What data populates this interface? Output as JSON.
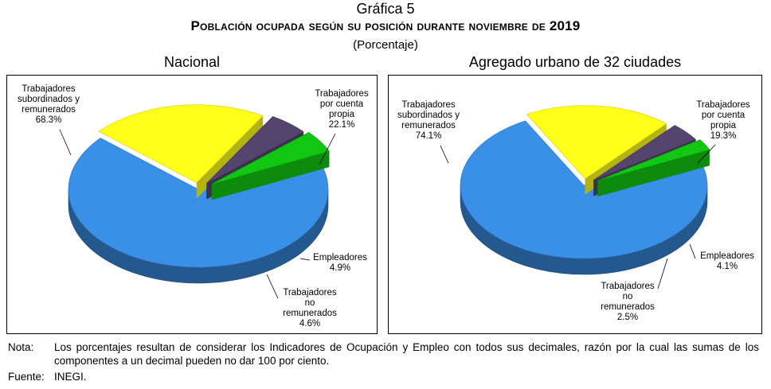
{
  "header": {
    "number": "Gráfica 5",
    "title": "Población ocupada según su posición durante noviembre de 2019",
    "subtitle": "(Porcentaje)"
  },
  "chart_data": [
    {
      "type": "pie",
      "title": "Nacional",
      "slices": [
        {
          "label_lines": [
            "Trabajadores",
            "subordinados y",
            "remunerados"
          ],
          "value": 68.3,
          "value_label": "68.3%",
          "color": "#3a8fe6"
        },
        {
          "label_lines": [
            "Trabajadores",
            "por cuenta",
            "propia"
          ],
          "value": 22.1,
          "value_label": "22.1%",
          "color": "#ffff1a"
        },
        {
          "label_lines": [
            "Empleadores"
          ],
          "value": 4.9,
          "value_label": "4.9%",
          "color": "#55446e"
        },
        {
          "label_lines": [
            "Trabajadores",
            "no",
            "remunerados"
          ],
          "value": 4.6,
          "value_label": "4.6%",
          "color": "#11c711"
        }
      ]
    },
    {
      "type": "pie",
      "title": "Agregado urbano de 32 ciudades",
      "slices": [
        {
          "label_lines": [
            "Trabajadores",
            "subordinados y",
            "remunerados"
          ],
          "value": 74.1,
          "value_label": "74.1%",
          "color": "#3a8fe6"
        },
        {
          "label_lines": [
            "Trabajadores",
            "por cuenta",
            "propia"
          ],
          "value": 19.3,
          "value_label": "19.3%",
          "color": "#ffff1a"
        },
        {
          "label_lines": [
            "Empleadores"
          ],
          "value": 4.1,
          "value_label": "4.1%",
          "color": "#55446e"
        },
        {
          "label_lines": [
            "Trabajadores",
            "no",
            "remunerados"
          ],
          "value": 2.5,
          "value_label": "2.5%",
          "color": "#11c711"
        }
      ]
    }
  ],
  "footer": {
    "note_label": "Nota:",
    "note_text": "Los porcentajes resultan de considerar los Indicadores de Ocupación y Empleo con todos sus decimales, razón por la cual las sumas de los componentes a un decimal pueden no dar 100 por ciento.",
    "source_label": "Fuente:",
    "source_text": "INEGI."
  }
}
